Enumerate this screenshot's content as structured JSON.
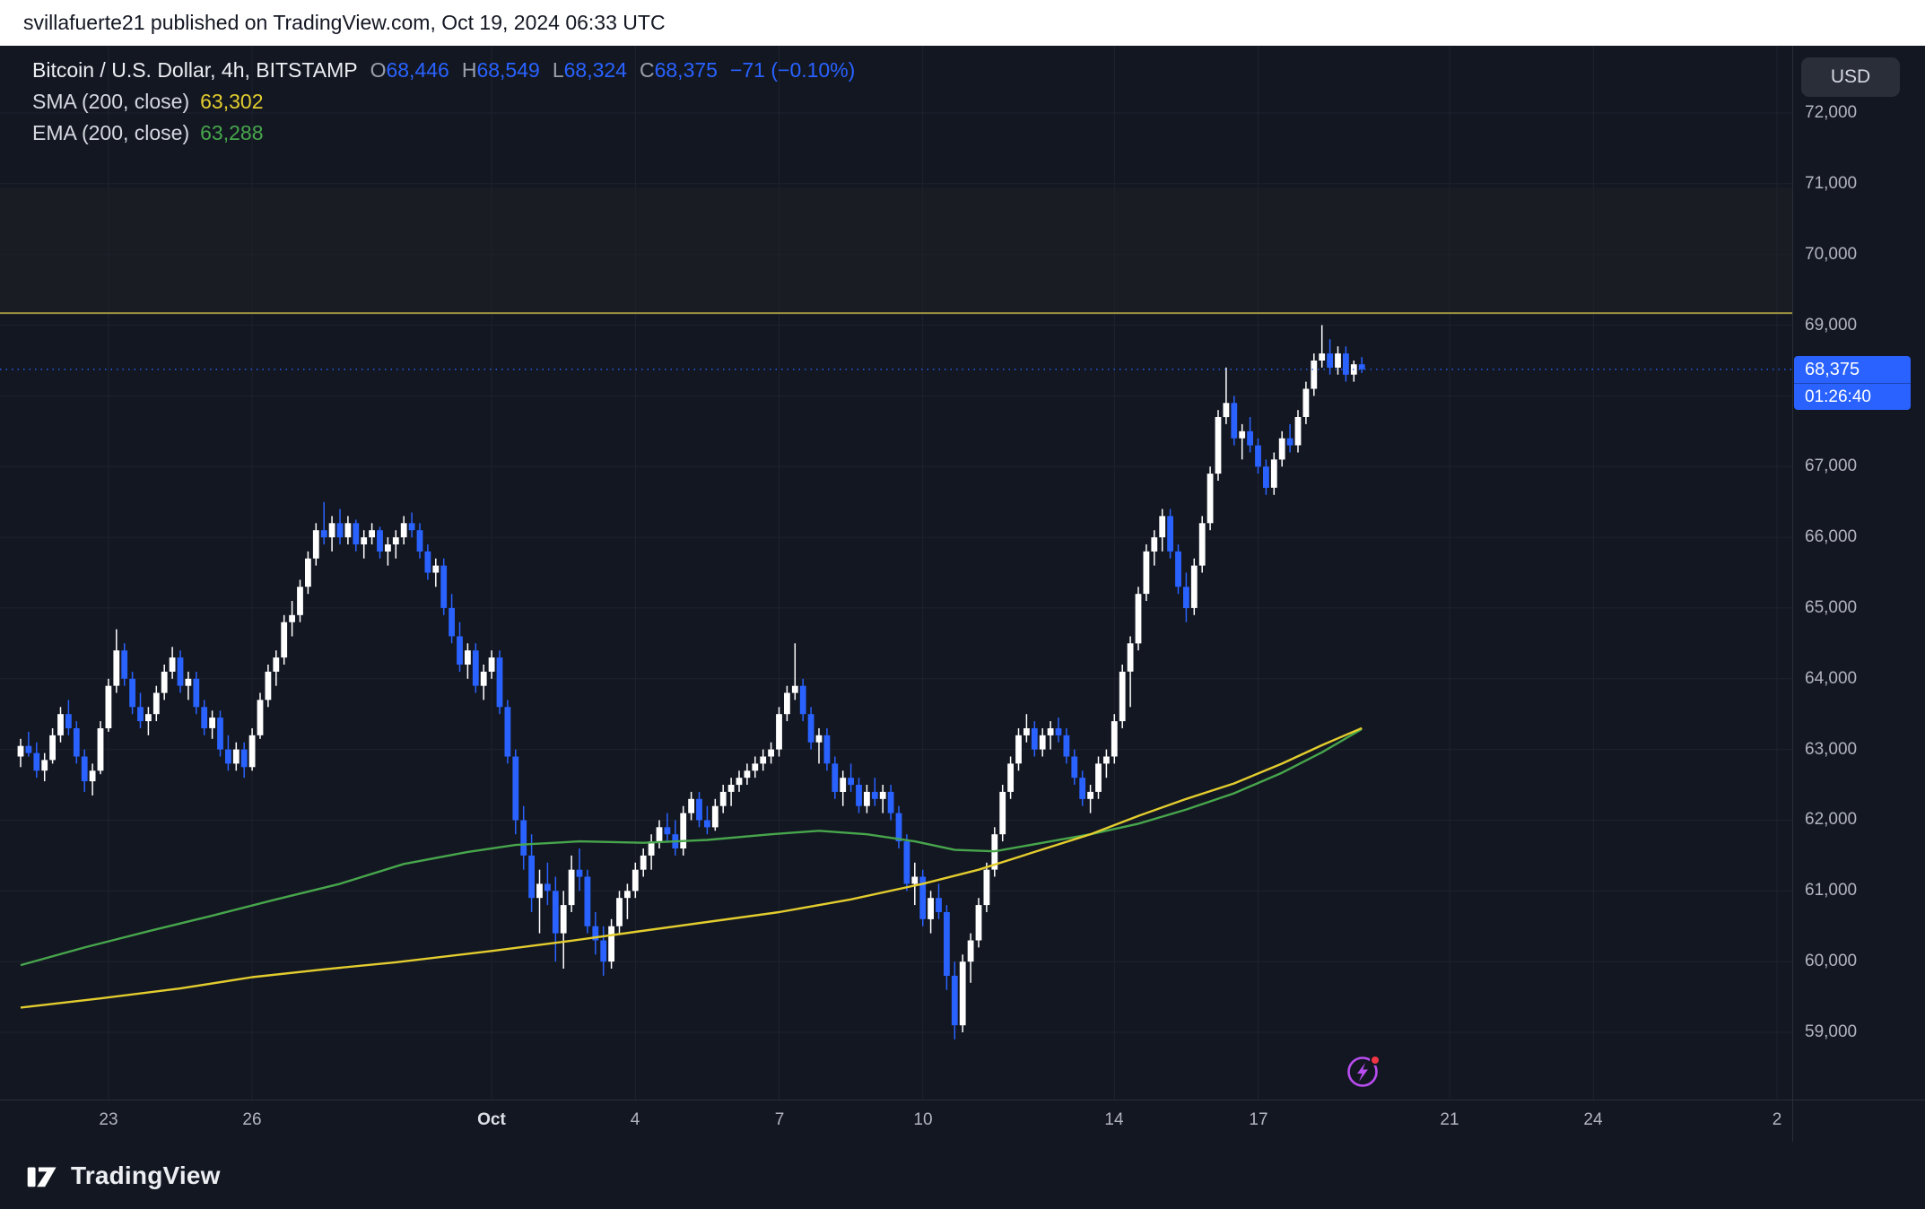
{
  "header": {
    "text": "svillafuerte21 published on TradingView.com, Oct 19, 2024 06:33 UTC"
  },
  "legend": {
    "symbol": "Bitcoin / U.S. Dollar, 4h, BITSTAMP",
    "ohlc": {
      "o_key": "O",
      "o": "68,446",
      "h_key": "H",
      "h": "68,549",
      "l_key": "L",
      "l": "68,324",
      "c_key": "C",
      "c": "68,375"
    },
    "change": "−71 (−0.10%)",
    "sma_label": "SMA (200, close)",
    "sma_value": "63,302",
    "ema_label": "EMA (200, close)",
    "ema_value": "63,288"
  },
  "price_scale": {
    "currency": "USD",
    "tag_price": "68,375",
    "tag_countdown": "01:26:40"
  },
  "footer": {
    "brand": "TradingView"
  },
  "chart_data": {
    "type": "candlestick",
    "title": "Bitcoin / U.S. Dollar",
    "interval": "4h",
    "exchange": "BITSTAMP",
    "last": {
      "open": 68446,
      "high": 68549,
      "low": 68324,
      "close": 68375,
      "change": -71,
      "change_pct": -0.1
    },
    "indicators": {
      "sma_200_close": 63302,
      "ema_200_close": 63288
    },
    "levels": {
      "last_price": 68375,
      "drawn_level": 69170,
      "zone": [
        69170,
        70950
      ]
    },
    "colors": {
      "up": "#ffffff",
      "down": "#2962ff",
      "sma": "#e3cd2e",
      "ema": "#47a64c",
      "level": "#9d9241",
      "zone_fill": "rgba(157,146,65,0.05)",
      "accent": "#2962ff",
      "grid": "#1e222d"
    },
    "y_ticks": [
      {
        "v": 72000,
        "label": "72,000"
      },
      {
        "v": 71000,
        "label": "71,000"
      },
      {
        "v": 70000,
        "label": "70,000"
      },
      {
        "v": 69000,
        "label": "69,000"
      },
      {
        "v": 68000,
        "label": "68,000"
      },
      {
        "v": 67000,
        "label": "67,000"
      },
      {
        "v": 66000,
        "label": "66,000"
      },
      {
        "v": 65000,
        "label": "65,000"
      },
      {
        "v": 64000,
        "label": "64,000"
      },
      {
        "v": 63000,
        "label": "63,000"
      },
      {
        "v": 62000,
        "label": "62,000"
      },
      {
        "v": 61000,
        "label": "61,000"
      },
      {
        "v": 60000,
        "label": "60,000"
      },
      {
        "v": 59000,
        "label": "59,000"
      }
    ],
    "x_ticks": [
      {
        "i": 11,
        "label": "23"
      },
      {
        "i": 29,
        "label": "26"
      },
      {
        "i": 59,
        "label": "Oct",
        "major": true
      },
      {
        "i": 77,
        "label": "4"
      },
      {
        "i": 95,
        "label": "7"
      },
      {
        "i": 113,
        "label": "10"
      },
      {
        "i": 137,
        "label": "14"
      },
      {
        "i": 155,
        "label": "17"
      },
      {
        "i": 179,
        "label": "21"
      },
      {
        "i": 197,
        "label": "24"
      },
      {
        "i": 220,
        "label": "2"
      }
    ],
    "candles": [
      [
        62900,
        63150,
        62750,
        63050
      ],
      [
        63050,
        63250,
        62900,
        62950
      ],
      [
        62950,
        63100,
        62600,
        62700
      ],
      [
        62700,
        62950,
        62550,
        62850
      ],
      [
        62850,
        63300,
        62800,
        63200
      ],
      [
        63200,
        63600,
        63100,
        63500
      ],
      [
        63500,
        63700,
        63200,
        63300
      ],
      [
        63300,
        63400,
        62800,
        62900
      ],
      [
        62900,
        63000,
        62400,
        62550
      ],
      [
        62550,
        62800,
        62350,
        62700
      ],
      [
        62700,
        63400,
        62650,
        63300
      ],
      [
        63300,
        64000,
        63250,
        63900
      ],
      [
        63900,
        64700,
        63800,
        64400
      ],
      [
        64400,
        64500,
        63900,
        64000
      ],
      [
        64000,
        64100,
        63500,
        63600
      ],
      [
        63600,
        63800,
        63300,
        63400
      ],
      [
        63400,
        63600,
        63200,
        63500
      ],
      [
        63500,
        63900,
        63400,
        63800
      ],
      [
        63800,
        64200,
        63700,
        64100
      ],
      [
        64100,
        64450,
        64000,
        64300
      ],
      [
        64300,
        64400,
        63800,
        63900
      ],
      [
        63900,
        64100,
        63700,
        64000
      ],
      [
        64000,
        64100,
        63500,
        63600
      ],
      [
        63600,
        63700,
        63200,
        63300
      ],
      [
        63300,
        63550,
        63150,
        63450
      ],
      [
        63450,
        63550,
        62900,
        63000
      ],
      [
        63000,
        63200,
        62700,
        62800
      ],
      [
        62800,
        63100,
        62700,
        63000
      ],
      [
        63000,
        63100,
        62600,
        62750
      ],
      [
        62750,
        63300,
        62700,
        63200
      ],
      [
        63200,
        63800,
        63150,
        63700
      ],
      [
        63700,
        64200,
        63600,
        64100
      ],
      [
        64100,
        64400,
        63900,
        64300
      ],
      [
        64300,
        64900,
        64200,
        64800
      ],
      [
        64800,
        65100,
        64600,
        64900
      ],
      [
        64900,
        65400,
        64800,
        65300
      ],
      [
        65300,
        65800,
        65200,
        65700
      ],
      [
        65700,
        66200,
        65600,
        66100
      ],
      [
        66100,
        66500,
        65900,
        66000
      ],
      [
        66000,
        66300,
        65800,
        66200
      ],
      [
        66200,
        66400,
        65900,
        66000
      ],
      [
        66000,
        66300,
        65900,
        66200
      ],
      [
        66200,
        66250,
        65800,
        65900
      ],
      [
        65900,
        66100,
        65700,
        66000
      ],
      [
        66000,
        66200,
        65900,
        66100
      ],
      [
        66100,
        66150,
        65700,
        65800
      ],
      [
        65800,
        66000,
        65600,
        65900
      ],
      [
        65900,
        66100,
        65700,
        66000
      ],
      [
        66000,
        66300,
        65900,
        66200
      ],
      [
        66200,
        66350,
        66000,
        66100
      ],
      [
        66100,
        66200,
        65700,
        65800
      ],
      [
        65800,
        65900,
        65400,
        65500
      ],
      [
        65500,
        65700,
        65300,
        65600
      ],
      [
        65600,
        65700,
        64900,
        65000
      ],
      [
        65000,
        65200,
        64500,
        64600
      ],
      [
        64600,
        64800,
        64100,
        64200
      ],
      [
        64200,
        64500,
        64000,
        64400
      ],
      [
        64400,
        64500,
        63800,
        63900
      ],
      [
        63900,
        64200,
        63700,
        64100
      ],
      [
        64100,
        64400,
        64000,
        64300
      ],
      [
        64300,
        64400,
        63500,
        63600
      ],
      [
        63600,
        63700,
        62800,
        62900
      ],
      [
        62900,
        63000,
        61800,
        62000
      ],
      [
        62000,
        62200,
        61300,
        61500
      ],
      [
        61500,
        61800,
        60700,
        60900
      ],
      [
        60900,
        61300,
        60400,
        61100
      ],
      [
        61100,
        61400,
        60800,
        61000
      ],
      [
        61000,
        61200,
        60000,
        60400
      ],
      [
        60400,
        61000,
        59900,
        60800
      ],
      [
        60800,
        61500,
        60700,
        61300
      ],
      [
        61300,
        61600,
        61000,
        61200
      ],
      [
        61200,
        61300,
        60400,
        60500
      ],
      [
        60500,
        60700,
        60100,
        60300
      ],
      [
        60300,
        60500,
        59800,
        60000
      ],
      [
        60000,
        60600,
        59900,
        60500
      ],
      [
        60500,
        61000,
        60400,
        60900
      ],
      [
        60900,
        61100,
        60600,
        61000
      ],
      [
        61000,
        61400,
        60900,
        61300
      ],
      [
        61300,
        61600,
        61200,
        61500
      ],
      [
        61500,
        61800,
        61300,
        61700
      ],
      [
        61700,
        62000,
        61600,
        61900
      ],
      [
        61900,
        62100,
        61700,
        61800
      ],
      [
        61800,
        62000,
        61500,
        61600
      ],
      [
        61600,
        62200,
        61500,
        62100
      ],
      [
        62100,
        62400,
        62000,
        62300
      ],
      [
        62300,
        62400,
        61900,
        62000
      ],
      [
        62000,
        62200,
        61800,
        61900
      ],
      [
        61900,
        62300,
        61850,
        62200
      ],
      [
        62200,
        62500,
        62100,
        62400
      ],
      [
        62400,
        62600,
        62200,
        62500
      ],
      [
        62500,
        62700,
        62400,
        62600
      ],
      [
        62600,
        62800,
        62500,
        62700
      ],
      [
        62700,
        62900,
        62600,
        62800
      ],
      [
        62800,
        63000,
        62700,
        62900
      ],
      [
        62900,
        63100,
        62800,
        63000
      ],
      [
        63000,
        63600,
        62900,
        63500
      ],
      [
        63500,
        63900,
        63400,
        63800
      ],
      [
        63800,
        64500,
        63700,
        63900
      ],
      [
        63900,
        64000,
        63400,
        63500
      ],
      [
        63500,
        63600,
        63000,
        63100
      ],
      [
        63100,
        63300,
        62800,
        63200
      ],
      [
        63200,
        63300,
        62700,
        62800
      ],
      [
        62800,
        62900,
        62300,
        62400
      ],
      [
        62400,
        62700,
        62200,
        62600
      ],
      [
        62600,
        62800,
        62400,
        62500
      ],
      [
        62500,
        62600,
        62100,
        62200
      ],
      [
        62200,
        62500,
        62100,
        62400
      ],
      [
        62400,
        62600,
        62200,
        62300
      ],
      [
        62300,
        62500,
        62100,
        62400
      ],
      [
        62400,
        62500,
        62000,
        62100
      ],
      [
        62100,
        62200,
        61600,
        61700
      ],
      [
        61700,
        61800,
        61000,
        61100
      ],
      [
        61100,
        61400,
        60800,
        61200
      ],
      [
        61200,
        61300,
        60500,
        60600
      ],
      [
        60600,
        61000,
        60400,
        60900
      ],
      [
        60900,
        61100,
        60600,
        60700
      ],
      [
        60700,
        60800,
        59600,
        59800
      ],
      [
        59800,
        60000,
        58900,
        59100
      ],
      [
        59100,
        60100,
        59000,
        60000
      ],
      [
        60000,
        60400,
        59700,
        60300
      ],
      [
        60300,
        60900,
        60200,
        60800
      ],
      [
        60800,
        61400,
        60700,
        61300
      ],
      [
        61300,
        61900,
        61200,
        61800
      ],
      [
        61800,
        62500,
        61700,
        62400
      ],
      [
        62400,
        62900,
        62300,
        62800
      ],
      [
        62800,
        63300,
        62700,
        63200
      ],
      [
        63200,
        63500,
        63100,
        63300
      ],
      [
        63300,
        63400,
        62900,
        63000
      ],
      [
        63000,
        63300,
        62900,
        63200
      ],
      [
        63200,
        63400,
        63000,
        63300
      ],
      [
        63300,
        63450,
        63100,
        63200
      ],
      [
        63200,
        63300,
        62800,
        62900
      ],
      [
        62900,
        63000,
        62500,
        62600
      ],
      [
        62600,
        62700,
        62200,
        62300
      ],
      [
        62300,
        62500,
        62100,
        62400
      ],
      [
        62400,
        62900,
        62300,
        62800
      ],
      [
        62800,
        63000,
        62600,
        62900
      ],
      [
        62900,
        63500,
        62800,
        63400
      ],
      [
        63400,
        64200,
        63300,
        64100
      ],
      [
        64100,
        64600,
        63600,
        64500
      ],
      [
        64500,
        65300,
        64400,
        65200
      ],
      [
        65200,
        65900,
        65100,
        65800
      ],
      [
        65800,
        66100,
        65600,
        66000
      ],
      [
        66000,
        66400,
        65800,
        66300
      ],
      [
        66300,
        66400,
        65700,
        65800
      ],
      [
        65800,
        65900,
        65200,
        65300
      ],
      [
        65300,
        65500,
        64800,
        65000
      ],
      [
        65000,
        65700,
        64900,
        65600
      ],
      [
        65600,
        66300,
        65500,
        66200
      ],
      [
        66200,
        67000,
        66100,
        66900
      ],
      [
        66900,
        67800,
        66800,
        67700
      ],
      [
        67700,
        68400,
        67600,
        67900
      ],
      [
        67900,
        68000,
        67300,
        67400
      ],
      [
        67400,
        67600,
        67100,
        67500
      ],
      [
        67500,
        67700,
        67200,
        67300
      ],
      [
        67300,
        67400,
        66900,
        67000
      ],
      [
        67000,
        67100,
        66600,
        66700
      ],
      [
        66700,
        67200,
        66600,
        67100
      ],
      [
        67100,
        67500,
        67000,
        67400
      ],
      [
        67400,
        67600,
        67200,
        67300
      ],
      [
        67300,
        67800,
        67200,
        67700
      ],
      [
        67700,
        68200,
        67600,
        68100
      ],
      [
        68100,
        68600,
        68000,
        68500
      ],
      [
        68500,
        69000,
        68400,
        68600
      ],
      [
        68600,
        68800,
        68300,
        68400
      ],
      [
        68400,
        68700,
        68300,
        68600
      ],
      [
        68600,
        68700,
        68200,
        68300
      ],
      [
        68300,
        68500,
        68200,
        68446
      ],
      [
        68446,
        68549,
        68324,
        68375
      ]
    ],
    "sma_points": [
      [
        0,
        59350
      ],
      [
        10,
        59480
      ],
      [
        20,
        59620
      ],
      [
        29,
        59780
      ],
      [
        38,
        59890
      ],
      [
        47,
        59990
      ],
      [
        59,
        60150
      ],
      [
        68,
        60280
      ],
      [
        77,
        60420
      ],
      [
        86,
        60560
      ],
      [
        95,
        60700
      ],
      [
        104,
        60880
      ],
      [
        113,
        61100
      ],
      [
        120,
        61300
      ],
      [
        127,
        61550
      ],
      [
        134,
        61800
      ],
      [
        140,
        62060
      ],
      [
        146,
        62300
      ],
      [
        152,
        62520
      ],
      [
        158,
        62800
      ],
      [
        163,
        63060
      ],
      [
        168,
        63302
      ]
    ],
    "ema_points": [
      [
        0,
        59950
      ],
      [
        8,
        60200
      ],
      [
        16,
        60430
      ],
      [
        24,
        60650
      ],
      [
        32,
        60880
      ],
      [
        40,
        61100
      ],
      [
        48,
        61380
      ],
      [
        56,
        61550
      ],
      [
        62,
        61650
      ],
      [
        70,
        61700
      ],
      [
        78,
        61680
      ],
      [
        86,
        61720
      ],
      [
        94,
        61800
      ],
      [
        100,
        61850
      ],
      [
        106,
        61800
      ],
      [
        112,
        61700
      ],
      [
        117,
        61580
      ],
      [
        122,
        61560
      ],
      [
        128,
        61680
      ],
      [
        134,
        61800
      ],
      [
        140,
        61950
      ],
      [
        146,
        62150
      ],
      [
        152,
        62380
      ],
      [
        158,
        62670
      ],
      [
        163,
        62960
      ],
      [
        168,
        63288
      ]
    ]
  }
}
